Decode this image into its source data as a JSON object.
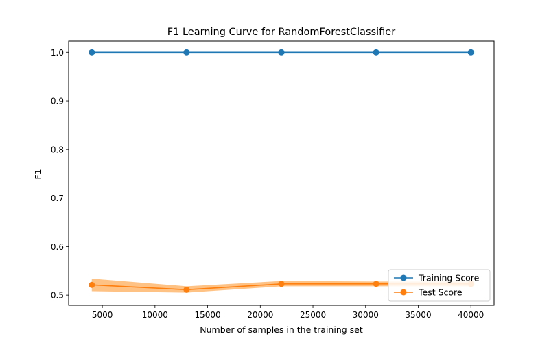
{
  "chart_data": {
    "type": "line",
    "title": "F1 Learning Curve for RandomForestClassifier",
    "xlabel": "Number of samples in the training set",
    "ylabel": "F1",
    "x": [
      4000,
      13000,
      22000,
      31000,
      40000
    ],
    "xlim": [
      1800,
      42200
    ],
    "ylim": [
      0.479,
      1.023
    ],
    "xticks": [
      5000,
      10000,
      15000,
      20000,
      25000,
      30000,
      35000,
      40000
    ],
    "yticks": [
      0.5,
      0.6,
      0.7,
      0.8,
      0.9,
      1.0
    ],
    "xtick_labels": [
      "5000",
      "10000",
      "15000",
      "20000",
      "25000",
      "30000",
      "35000",
      "40000"
    ],
    "ytick_labels": [
      "0.5",
      "0.6",
      "0.7",
      "0.8",
      "0.9",
      "1.0"
    ],
    "grid": false,
    "legend_position": "lower-right",
    "series": [
      {
        "name": "Training Score",
        "values": [
          1.0,
          1.0,
          1.0,
          1.0,
          1.0
        ],
        "band_lower": [
          1.0,
          1.0,
          1.0,
          1.0,
          1.0
        ],
        "band_upper": [
          1.0,
          1.0,
          1.0,
          1.0,
          1.0
        ],
        "color": "#1f77b4",
        "band_color": "#aec7e8"
      },
      {
        "name": "Test Score",
        "values": [
          0.521,
          0.511,
          0.523,
          0.523,
          0.523
        ],
        "band_lower": [
          0.508,
          0.505,
          0.518,
          0.518,
          0.518
        ],
        "band_upper": [
          0.534,
          0.518,
          0.529,
          0.528,
          0.528
        ],
        "color": "#ff7f0e",
        "band_color": "#ffbb78"
      }
    ]
  }
}
